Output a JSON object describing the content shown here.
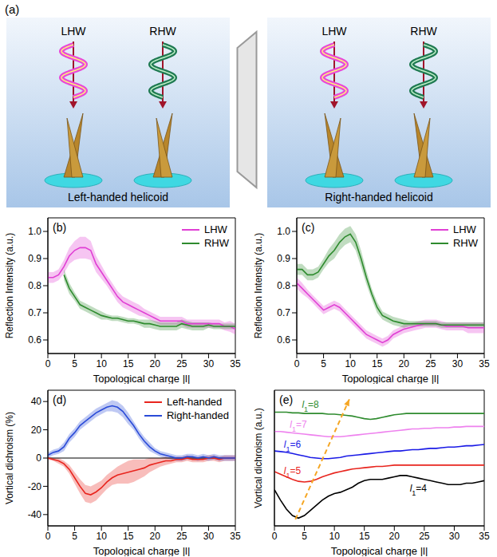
{
  "diagram": {
    "label": "(a)",
    "panels": [
      {
        "title": "Left-handed helicoid",
        "beams": [
          "LHW",
          "RHW"
        ]
      },
      {
        "title": "Right-handed helicoid",
        "beams": [
          "LHW",
          "RHW"
        ]
      }
    ]
  },
  "chart_data": [
    {
      "type": "line",
      "title": "(b)",
      "x_label": "Topological charge |l|",
      "y_label": "Reflection Intensity (a.u.)",
      "x": [
        0,
        1,
        2,
        3,
        4,
        5,
        6,
        7,
        8,
        9,
        10,
        11,
        12,
        13,
        14,
        15,
        16,
        17,
        18,
        19,
        20,
        21,
        22,
        23,
        24,
        25,
        26,
        27,
        28,
        29,
        30,
        31,
        32,
        33,
        34,
        35
      ],
      "xlim": [
        0,
        35
      ],
      "xticks": [
        0,
        5,
        10,
        15,
        20,
        25,
        30,
        35
      ],
      "ylim": [
        0.55,
        1.05
      ],
      "yticks": [
        0.6,
        0.7,
        0.8,
        0.9,
        {
          "value": 1,
          "label": "1.0"
        }
      ],
      "legend": "top right",
      "series": [
        {
          "name": "LHW",
          "color": "#e03fd4",
          "values": [
            0.83,
            0.83,
            0.84,
            0.87,
            0.91,
            0.93,
            0.94,
            0.94,
            0.93,
            0.88,
            0.85,
            0.82,
            0.79,
            0.76,
            0.74,
            0.73,
            0.72,
            0.71,
            0.7,
            0.69,
            0.68,
            0.67,
            0.67,
            0.67,
            0.67,
            0.67,
            0.66,
            0.66,
            0.66,
            0.66,
            0.66,
            0.66,
            0.66,
            0.65,
            0.65,
            0.64
          ],
          "error": [
            0.02,
            0.02,
            0.02,
            0.025,
            0.03,
            0.035,
            0.04,
            0.04,
            0.035,
            0.03,
            0.025,
            0.02,
            0.02,
            0.02,
            0.02,
            0.02,
            0.02,
            0.02,
            0.015,
            0.015,
            0.015,
            0.015,
            0.015,
            0.015,
            0.015,
            0.015,
            0.015,
            0.015,
            0.015,
            0.015,
            0.015,
            0.015,
            0.015,
            0.015,
            0.02,
            0.02
          ]
        },
        {
          "name": "RHW",
          "color": "#2e8b2e",
          "values": [
            null,
            null,
            null,
            0.84,
            0.79,
            0.76,
            0.73,
            0.72,
            0.71,
            0.7,
            0.69,
            0.685,
            0.68,
            0.68,
            0.675,
            0.67,
            0.67,
            0.665,
            0.66,
            0.66,
            0.655,
            0.65,
            0.65,
            0.65,
            0.65,
            0.66,
            0.655,
            0.65,
            0.65,
            0.65,
            0.655,
            0.65,
            0.65,
            0.65,
            0.65,
            0.65
          ],
          "error": [
            null,
            null,
            null,
            0.02,
            0.02,
            0.015,
            0.015,
            0.015,
            0.015,
            0.015,
            0.015,
            0.01,
            0.01,
            0.01,
            0.01,
            0.01,
            0.01,
            0.01,
            0.015,
            0.015,
            0.015,
            0.015,
            0.015,
            0.015,
            0.015,
            0.015,
            0.015,
            0.015,
            0.015,
            0.015,
            0.01,
            0.01,
            0.01,
            0.01,
            0.01,
            0.01
          ]
        }
      ]
    },
    {
      "type": "line",
      "title": "(c)",
      "x_label": "Topological charge |l|",
      "y_label": "Reflection Intensity (a.u.)",
      "x": [
        0,
        1,
        2,
        3,
        4,
        5,
        6,
        7,
        8,
        9,
        10,
        11,
        12,
        13,
        14,
        15,
        16,
        17,
        18,
        19,
        20,
        21,
        22,
        23,
        24,
        25,
        26,
        27,
        28,
        29,
        30,
        31,
        32,
        33,
        34,
        35
      ],
      "xlim": [
        0,
        35
      ],
      "xticks": [
        0,
        5,
        10,
        15,
        20,
        25,
        30,
        35
      ],
      "ylim": [
        0.55,
        1.05
      ],
      "yticks": [
        0.6,
        0.7,
        0.8,
        0.9,
        {
          "value": 1,
          "label": "1.0"
        }
      ],
      "legend": "top right",
      "series": [
        {
          "name": "LHW",
          "color": "#e03fd4",
          "values": [
            0.81,
            0.79,
            0.77,
            0.75,
            0.73,
            0.71,
            0.72,
            0.73,
            0.72,
            0.7,
            0.68,
            0.66,
            0.64,
            0.62,
            0.61,
            0.6,
            0.59,
            0.6,
            0.62,
            0.63,
            0.64,
            0.645,
            0.65,
            0.655,
            0.66,
            0.66,
            0.66,
            0.655,
            0.65,
            0.65,
            0.65,
            0.65,
            0.645,
            0.645,
            0.645,
            0.645
          ],
          "error": [
            0.02,
            0.02,
            0.015,
            0.015,
            0.015,
            0.015,
            0.015,
            0.015,
            0.015,
            0.015,
            0.015,
            0.015,
            0.015,
            0.015,
            0.015,
            0.015,
            0.015,
            0.015,
            0.015,
            0.015,
            0.015,
            0.015,
            0.015,
            0.015,
            0.015,
            0.015,
            0.015,
            0.015,
            0.015,
            0.015,
            0.015,
            0.015,
            0.02,
            0.02,
            0.02,
            0.02
          ]
        },
        {
          "name": "RHW",
          "color": "#2e8b2e",
          "values": [
            0.86,
            0.86,
            0.84,
            0.84,
            0.85,
            0.88,
            0.91,
            0.93,
            0.96,
            0.98,
            0.99,
            0.96,
            0.9,
            0.83,
            0.77,
            0.72,
            0.69,
            0.68,
            0.67,
            0.665,
            0.66,
            0.66,
            0.66,
            0.66,
            0.66,
            0.66,
            0.66,
            0.655,
            0.655,
            0.655,
            0.655,
            0.655,
            0.655,
            0.655,
            0.655,
            0.655
          ],
          "error": [
            0.02,
            0.02,
            0.02,
            0.02,
            0.02,
            0.02,
            0.025,
            0.03,
            0.03,
            0.03,
            0.03,
            0.03,
            0.03,
            0.025,
            0.02,
            0.02,
            0.015,
            0.015,
            0.015,
            0.015,
            0.015,
            0.01,
            0.01,
            0.01,
            0.01,
            0.01,
            0.01,
            0.01,
            0.01,
            0.01,
            0.01,
            0.01,
            0.01,
            0.01,
            0.01,
            0.01
          ]
        }
      ]
    },
    {
      "type": "line",
      "title": "(d)",
      "x_label": "Topological charge |l|",
      "y_label": "Vortical dichroism (%)",
      "x": [
        0,
        1,
        2,
        3,
        4,
        5,
        6,
        7,
        8,
        9,
        10,
        11,
        12,
        13,
        14,
        15,
        16,
        17,
        18,
        19,
        20,
        21,
        22,
        23,
        24,
        25,
        26,
        27,
        28,
        29,
        30,
        31,
        32,
        33,
        34,
        35
      ],
      "xlim": [
        0,
        35
      ],
      "xticks": [
        0,
        5,
        10,
        15,
        20,
        25,
        30,
        35
      ],
      "ylim": [
        -48,
        48
      ],
      "yticks": [
        -40,
        -20,
        0,
        20,
        40
      ],
      "legend": "top right",
      "series": [
        {
          "name": "Left-handed",
          "color": "#e8251e",
          "values": [
            0,
            -1,
            -2,
            -4,
            -8,
            -14,
            -20,
            -25,
            -26,
            -24,
            -21,
            -17,
            -14,
            -12,
            -11,
            -10,
            -9,
            -8,
            -7,
            -5,
            -4,
            -3,
            -2,
            -2,
            -1,
            -1,
            0,
            -1,
            -1,
            -1,
            0,
            0,
            -1,
            0,
            0,
            0
          ],
          "error": [
            1,
            1,
            2,
            2,
            3,
            4,
            5,
            6,
            6,
            6,
            5,
            5,
            5,
            6,
            7,
            8,
            8,
            7,
            6,
            5,
            4,
            3,
            3,
            2,
            2,
            2,
            2,
            2,
            2,
            2,
            2,
            2,
            2,
            2,
            2,
            2
          ]
        },
        {
          "name": "Right-handed",
          "color": "#2a4bd8",
          "values": [
            2,
            4,
            5,
            8,
            14,
            18,
            23,
            26,
            29,
            32,
            34,
            36,
            37,
            36,
            33,
            28,
            23,
            17,
            12,
            8,
            5,
            3,
            2,
            1,
            0,
            0,
            1,
            1,
            0,
            1,
            0,
            1,
            0,
            0,
            0,
            0
          ],
          "error": [
            2,
            2,
            2,
            3,
            3,
            3,
            3,
            3,
            3,
            3,
            3,
            3,
            4,
            4,
            4,
            4,
            3,
            3,
            3,
            3,
            2,
            2,
            2,
            2,
            2,
            2,
            2,
            2,
            2,
            2,
            2,
            2,
            2,
            2,
            2,
            2
          ]
        }
      ]
    },
    {
      "type": "line",
      "title": "(e)",
      "x_label": "Topological charge |l|",
      "y_label": "Vortical dichroism (a.u.)",
      "x": [
        0,
        1,
        2,
        3,
        4,
        5,
        6,
        7,
        8,
        9,
        10,
        11,
        12,
        13,
        14,
        15,
        16,
        17,
        18,
        19,
        20,
        21,
        22,
        23,
        24,
        25,
        26,
        27,
        28,
        29,
        30,
        31,
        32,
        33,
        34,
        35
      ],
      "xlim": [
        0,
        35
      ],
      "xticks": [
        0,
        5,
        10,
        15,
        20,
        25,
        30,
        35
      ],
      "ylim": [
        0,
        10.5
      ],
      "tick_labels": "x",
      "arrow": {
        "from": [
          3.5,
          0.5
        ],
        "to": [
          12.5,
          9.8
        ]
      },
      "series": [
        {
          "name": "l1=4",
          "color": "#000000",
          "values": [
            2.8,
            2.0,
            1.3,
            0.8,
            0.6,
            0.8,
            1.2,
            1.6,
            2.0,
            2.3,
            2.5,
            2.6,
            2.8,
            3.0,
            3.3,
            3.5,
            3.6,
            3.6,
            3.6,
            3.7,
            3.8,
            3.9,
            3.9,
            3.8,
            3.7,
            3.6,
            3.5,
            3.4,
            3.3,
            3.2,
            3.2,
            3.2,
            3.3,
            3.3,
            3.4,
            3.5
          ]
        },
        {
          "name": "l1=5",
          "color": "#e8251e",
          "values": [
            4.2,
            4.0,
            3.8,
            3.6,
            3.45,
            3.4,
            3.45,
            3.6,
            3.8,
            3.95,
            4.1,
            4.2,
            4.3,
            4.4,
            4.45,
            4.5,
            4.55,
            4.6,
            4.6,
            4.65,
            4.7,
            4.7,
            4.7,
            4.7,
            4.7,
            4.7,
            4.7,
            4.7,
            4.7,
            4.7,
            4.7,
            4.7,
            4.7,
            4.7,
            4.7,
            4.7
          ]
        },
        {
          "name": "l1=6",
          "color": "#1a1ae6",
          "values": [
            5.8,
            5.75,
            5.7,
            5.6,
            5.5,
            5.4,
            5.3,
            5.25,
            5.2,
            5.2,
            5.25,
            5.3,
            5.4,
            5.45,
            5.5,
            5.55,
            5.6,
            5.65,
            5.7,
            5.75,
            5.8,
            5.8,
            5.85,
            5.9,
            5.9,
            5.95,
            6.0,
            6.0,
            6.05,
            6.1,
            6.1,
            6.15,
            6.2,
            6.2,
            6.25,
            6.3
          ]
        },
        {
          "name": "l1=7",
          "color": "#ee82ee",
          "values": [
            7.3,
            7.3,
            7.25,
            7.2,
            7.15,
            7.1,
            7.05,
            7.0,
            6.95,
            6.9,
            6.9,
            6.9,
            6.95,
            7.0,
            7.05,
            7.1,
            7.15,
            7.2,
            7.25,
            7.3,
            7.35,
            7.4,
            7.45,
            7.5,
            7.5,
            7.55,
            7.55,
            7.6,
            7.6,
            7.6,
            7.65,
            7.65,
            7.7,
            7.7,
            7.7,
            7.7
          ]
        },
        {
          "name": "l1=8",
          "color": "#2e8b2e",
          "values": [
            8.8,
            8.8,
            8.8,
            8.75,
            8.75,
            8.7,
            8.7,
            8.7,
            8.7,
            8.65,
            8.65,
            8.6,
            8.55,
            8.5,
            8.4,
            8.3,
            8.25,
            8.3,
            8.4,
            8.5,
            8.6,
            8.65,
            8.7,
            8.7,
            8.7,
            8.7,
            8.7,
            8.7,
            8.7,
            8.7,
            8.7,
            8.7,
            8.7,
            8.7,
            8.7,
            8.7
          ]
        }
      ]
    }
  ]
}
